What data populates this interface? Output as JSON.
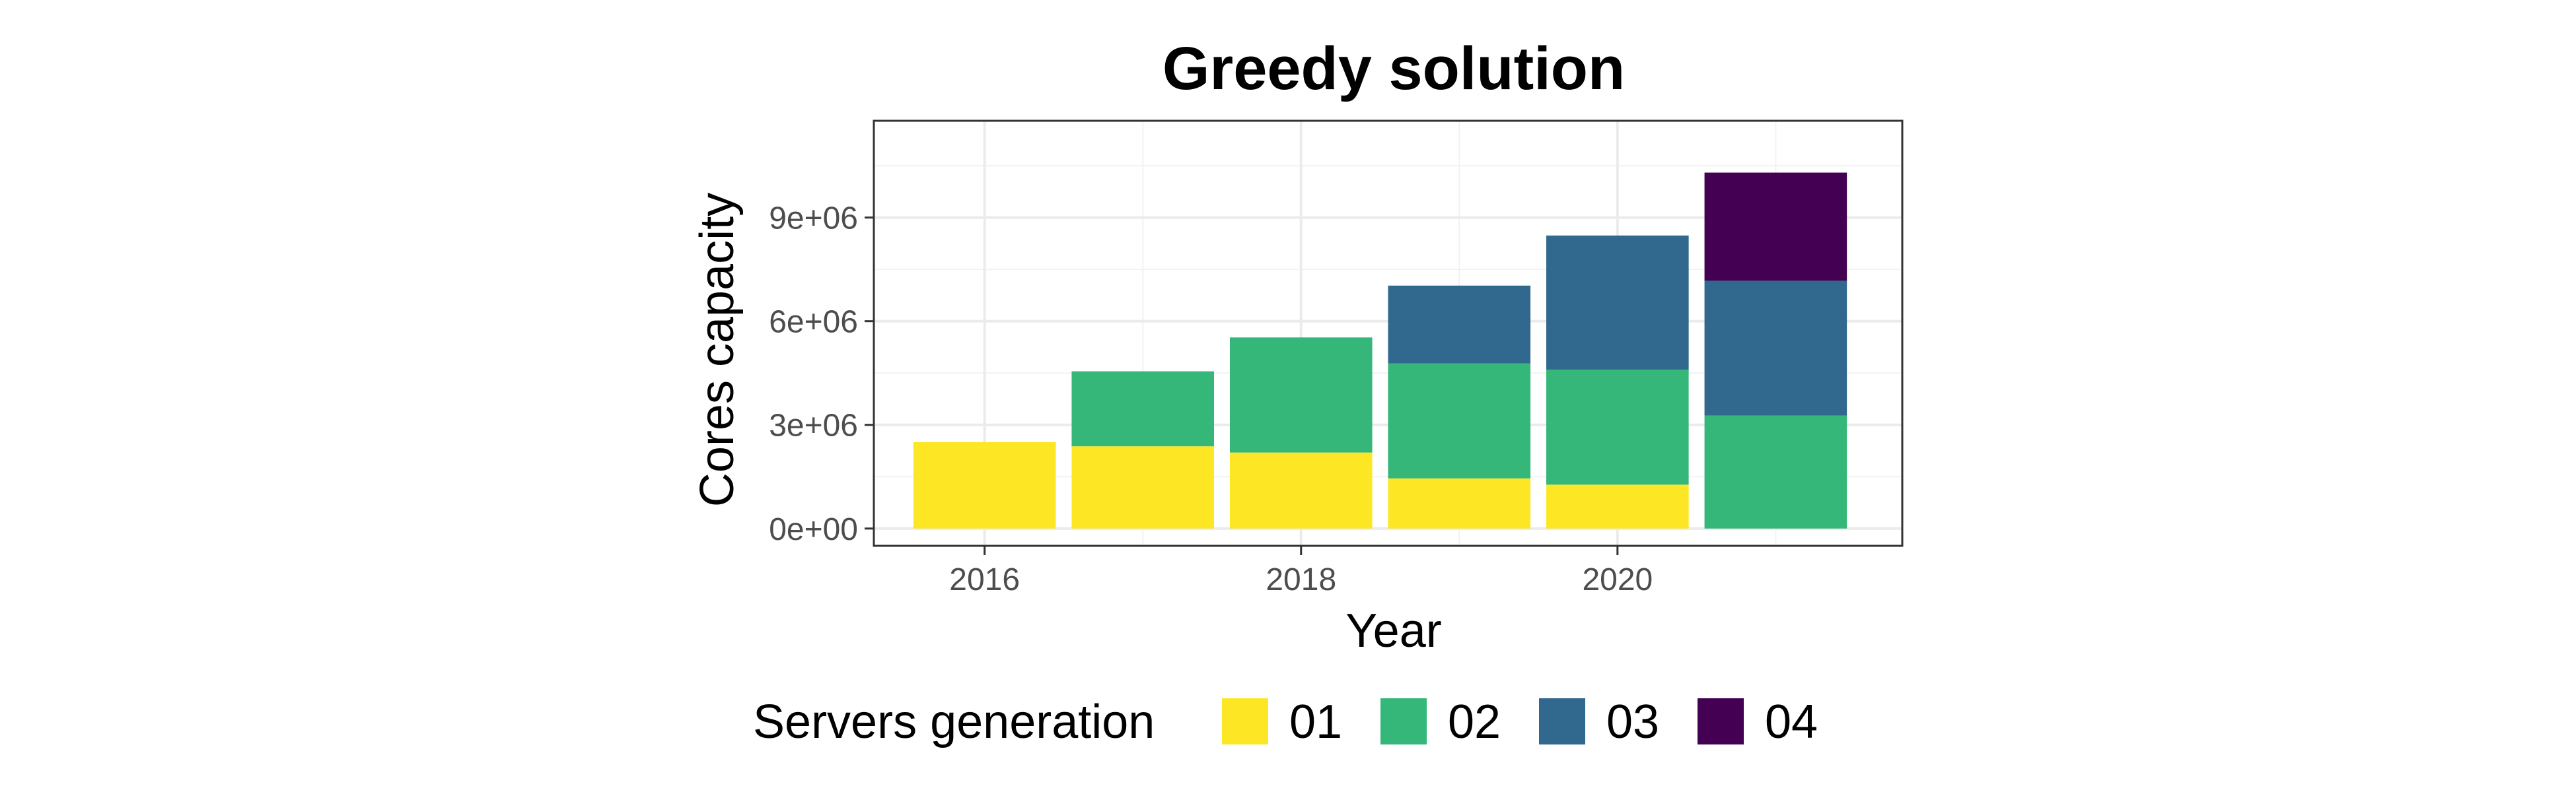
{
  "chart_data": {
    "type": "bar",
    "stacked": true,
    "title": "Greedy solution",
    "xlabel": "Year",
    "ylabel": "Cores capacity",
    "x": [
      2016,
      2017,
      2018,
      2019,
      2020,
      2021
    ],
    "x_ticks": [
      "2016",
      "2018",
      "2020"
    ],
    "x_tick_values": [
      2016,
      2018,
      2020
    ],
    "xlim": [
      2015.3,
      2021.8
    ],
    "y_ticks": [
      "0e+00",
      "3e+06",
      "6e+06",
      "9e+06"
    ],
    "y_tick_values": [
      0,
      3000000,
      6000000,
      9000000
    ],
    "ylim": [
      -500000,
      11800000
    ],
    "grid": true,
    "legend": {
      "title": "Servers generation",
      "position": "bottom"
    },
    "series": [
      {
        "name": "01",
        "color": "#FDE725",
        "values": [
          2500000,
          2380000,
          2200000,
          1450000,
          1270000,
          0
        ]
      },
      {
        "name": "02",
        "color": "#35B779",
        "values": [
          0,
          2170000,
          3330000,
          3330000,
          3330000,
          3270000
        ]
      },
      {
        "name": "03",
        "color": "#31688E",
        "values": [
          0,
          0,
          0,
          2250000,
          3880000,
          3900000
        ]
      },
      {
        "name": "04",
        "color": "#440154",
        "values": [
          0,
          0,
          0,
          0,
          0,
          3130000
        ]
      }
    ]
  }
}
